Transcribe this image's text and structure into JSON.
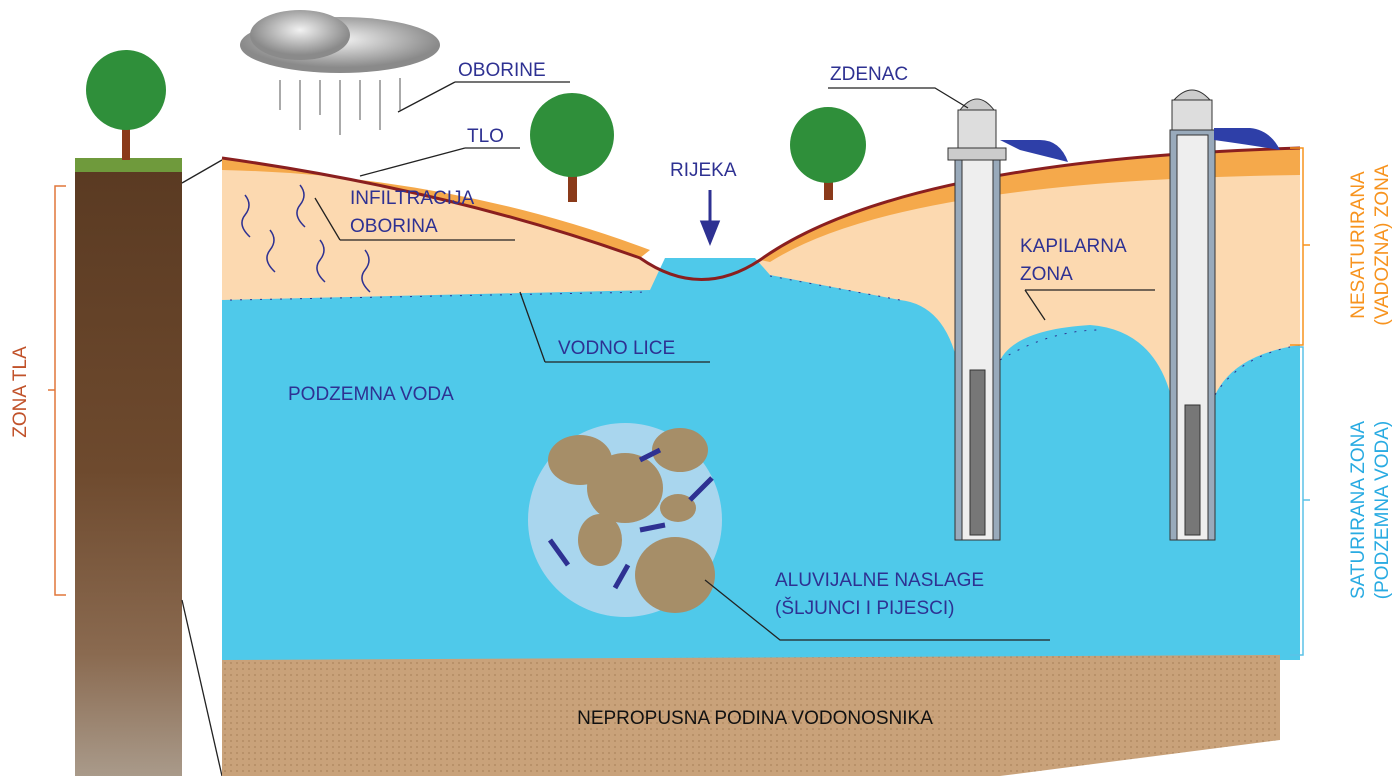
{
  "labels": {
    "precipitation": "OBORINE",
    "soil": "TLO",
    "infiltration": [
      "INFILTRACIJA",
      "OBORINA"
    ],
    "river": "RIJEKA",
    "well": "ZDENAC",
    "capillary_zone": [
      "KAPILARNA",
      "ZONA"
    ],
    "water_table": "VODNO LICE",
    "groundwater": "PODZEMNA VODA",
    "alluvial": [
      "ALUVIJALNE NASLAGE",
      "(ŠLJUNCI I PIJESCI)"
    ],
    "bedrock": "NEPROPUSNA PODINA VODONOSNIKA",
    "soil_zone": "ZONA TLA",
    "unsaturated_zone": [
      "NESATURIRANA",
      "(VADOZNA) ZONA"
    ],
    "saturated_zone": [
      "SATURIRANA ZONA",
      "(PODZEMNA VODA)"
    ]
  }
}
